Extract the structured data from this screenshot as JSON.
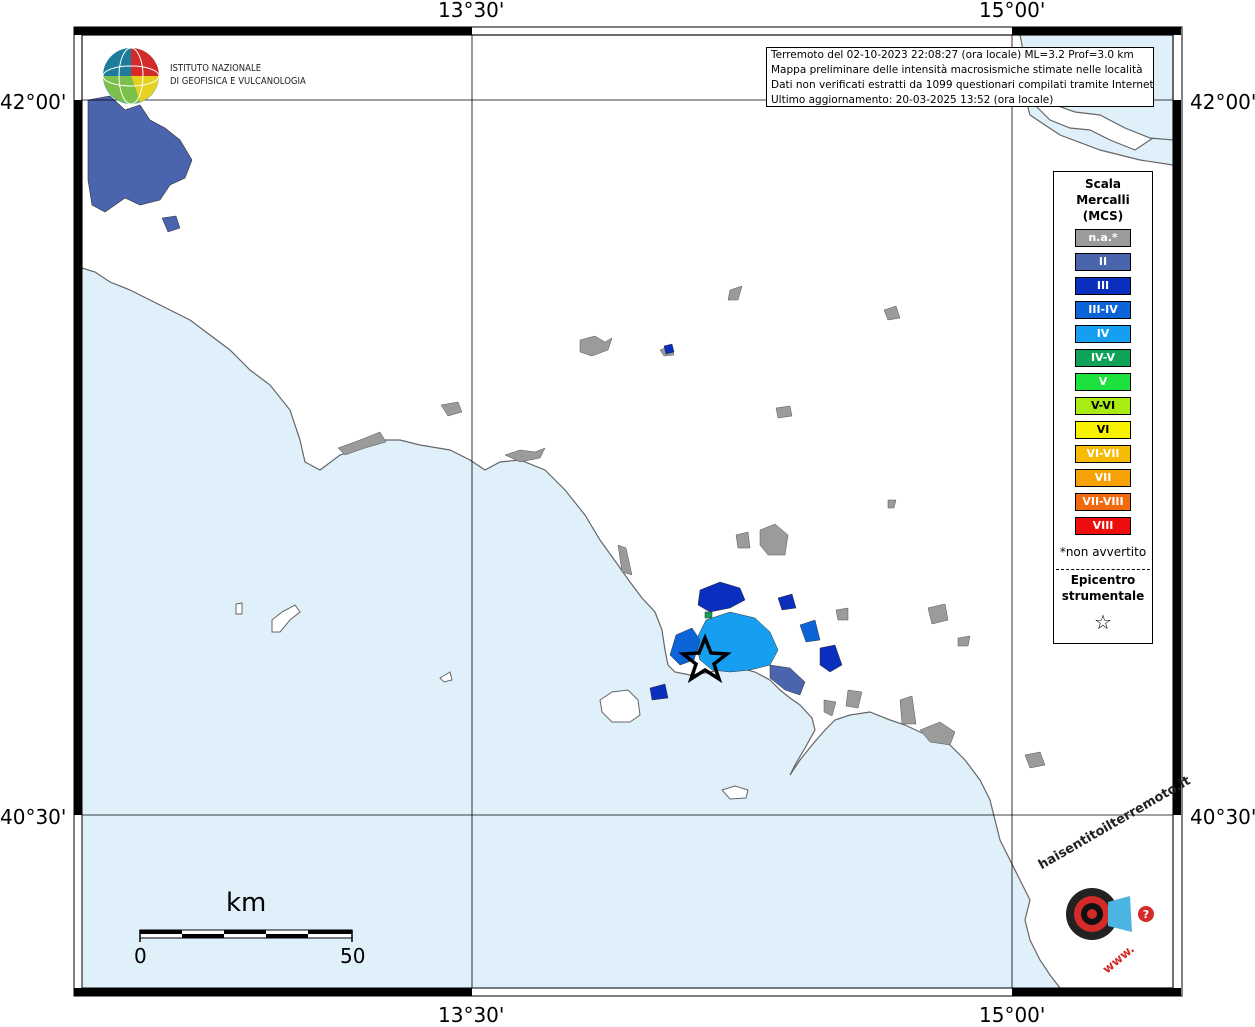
{
  "colors": {
    "sea": "#dff0fb",
    "land": "#ffffff",
    "coastline": "#666666",
    "frame": "#000000",
    "na": "#9b9b9b",
    "II": "#4a64ad",
    "III": "#0a2ebd",
    "III-IV": "#0c64d8",
    "IV": "#169ef0",
    "IV-V": "#0fa35a",
    "V": "#1de23d",
    "V-VI": "#a9ec14",
    "VI": "#f8f200",
    "VI-VII": "#f7bb06",
    "VII": "#f6a106",
    "VII-VIII": "#f26a0d",
    "VIII": "#ed0d0d"
  },
  "coordinates": {
    "top": [
      "13°30'",
      "15°00'"
    ],
    "bottom": [
      "13°30'",
      "15°00'"
    ],
    "left": [
      "42°00'",
      "40°30'"
    ],
    "right": [
      "42°00'",
      "40°30'"
    ]
  },
  "institute": {
    "line1": "ISTITUTO NAZIONALE",
    "line2": "DI GEOFISICA E VULCANOLOGIA"
  },
  "info": {
    "line1": "Terremoto del 02-10-2023 22:08:27 (ora locale) ML=3.2 Prof=3.0 km",
    "line2": "Mappa preliminare delle intensità macrosismiche stimate nelle località",
    "line3": "Dati non verificati estratti da 1099 questionari compilati tramite Internet.",
    "line4": "Ultimo aggiornamento: 20-03-2025 13:52 (ora locale)"
  },
  "legend": {
    "title1": "Scala",
    "title2": "Mercalli",
    "title3": "(MCS)",
    "items": [
      {
        "label": "n.a.*",
        "color": "#9b9b9b"
      },
      {
        "label": "II",
        "color": "#4a64ad"
      },
      {
        "label": "III",
        "color": "#0a2ebd"
      },
      {
        "label": "III-IV",
        "color": "#0c64d8"
      },
      {
        "label": "IV",
        "color": "#169ef0"
      },
      {
        "label": "IV-V",
        "color": "#0fa35a"
      },
      {
        "label": "V",
        "color": "#1de23d"
      },
      {
        "label": "V-VI",
        "color": "#a9ec14"
      },
      {
        "label": "VI",
        "color": "#f8f200"
      },
      {
        "label": "VI-VII",
        "color": "#f7bb06"
      },
      {
        "label": "VII",
        "color": "#f6a106"
      },
      {
        "label": "VII-VIII",
        "color": "#f26a0d"
      },
      {
        "label": "VIII",
        "color": "#ed0d0d"
      }
    ],
    "note": "*non avvertito",
    "epicenter1": "Epicentro",
    "epicenter2": "strumentale",
    "star": "☆"
  },
  "scalebar": {
    "unit": "km",
    "min": "0",
    "max": "50"
  },
  "brand": {
    "arc_text": "haisentitoilterremoto.it",
    "www": "www."
  }
}
